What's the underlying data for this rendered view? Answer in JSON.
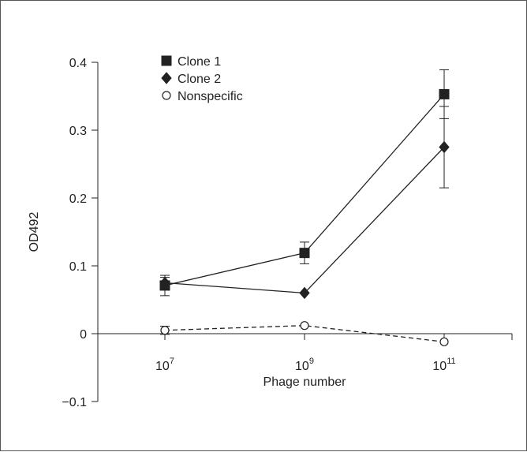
{
  "chart_data": {
    "type": "line",
    "xlabel": "Phage number",
    "ylabel": "OD492",
    "x_scale": "log10",
    "x_tick_base": "10",
    "x_ticks": [
      {
        "exp": "7",
        "value": 10000000
      },
      {
        "exp": "9",
        "value": 1000000000
      },
      {
        "exp": "11",
        "value": 100000000000
      }
    ],
    "y_ticks": [
      "0.4",
      "0.3",
      "0.2",
      "0.1",
      "0",
      "−0.1"
    ],
    "ylim": [
      -0.1,
      0.4
    ],
    "xlim_exp": [
      5.6,
      12.3
    ],
    "grid": false,
    "legend_position": "top-left",
    "series": [
      {
        "name": "Clone 1",
        "marker": "square",
        "marker_fill": "#222222",
        "line_style": "solid",
        "color": "#222222",
        "x_exp": [
          7,
          9,
          11
        ],
        "y": [
          0.071,
          0.119,
          0.353
        ],
        "error": [
          0.015,
          0.016,
          0.036
        ]
      },
      {
        "name": "Clone 2",
        "marker": "diamond",
        "marker_fill": "#222222",
        "line_style": "solid",
        "color": "#222222",
        "x_exp": [
          7,
          9,
          11
        ],
        "y": [
          0.075,
          0.06,
          0.275
        ],
        "error": [
          0.008,
          0.0,
          0.06
        ]
      },
      {
        "name": "Nonspecific",
        "marker": "circle",
        "marker_fill": "#ffffff",
        "line_style": "dashed",
        "color": "#222222",
        "x_exp": [
          7,
          9,
          11
        ],
        "y": [
          0.005,
          0.012,
          -0.012
        ],
        "error": [
          0.006,
          0.0,
          0.0
        ]
      }
    ]
  }
}
